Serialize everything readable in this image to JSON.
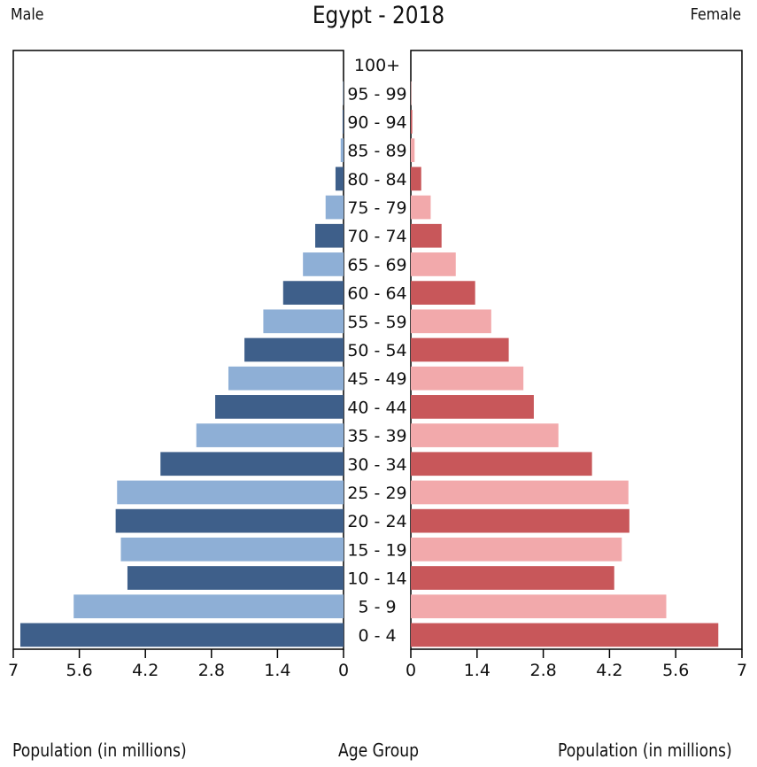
{
  "header": {
    "left_label": "Male",
    "title": "Egypt - 2018",
    "right_label": "Female"
  },
  "footer": {
    "left_axis_label": "Population (in millions)",
    "center_label": "Age Group",
    "right_axis_label": "Population (in millions)"
  },
  "chart_data": {
    "type": "bar",
    "orientation": "horizontal-pyramid",
    "title": "Egypt - 2018",
    "categories": [
      "100+",
      "95 - 99",
      "90 - 94",
      "85 - 89",
      "80 - 84",
      "75 - 79",
      "70 - 74",
      "65 - 69",
      "60 - 64",
      "55 - 59",
      "50 - 54",
      "45 - 49",
      "40 - 44",
      "35 - 39",
      "30 - 34",
      "25 - 29",
      "20 - 24",
      "15 - 19",
      "10 - 14",
      "5 - 9",
      "0 - 4"
    ],
    "series": [
      {
        "name": "Male",
        "values": [
          0.0,
          0.01,
          0.02,
          0.06,
          0.17,
          0.38,
          0.6,
          0.86,
          1.28,
          1.7,
          2.1,
          2.44,
          2.72,
          3.12,
          3.88,
          4.8,
          4.83,
          4.72,
          4.58,
          5.72,
          6.85
        ],
        "colors": [
          "#3e5f8a",
          "#8eafd6"
        ]
      },
      {
        "name": "Female",
        "values": [
          0.0,
          0.01,
          0.03,
          0.08,
          0.22,
          0.42,
          0.65,
          0.95,
          1.36,
          1.7,
          2.07,
          2.38,
          2.6,
          3.12,
          3.83,
          4.6,
          4.62,
          4.46,
          4.3,
          5.4,
          6.5
        ],
        "colors": [
          "#c8575a",
          "#f2a9ab"
        ]
      }
    ],
    "xticks": [
      "7",
      "5.6",
      "4.2",
      "2.8",
      "1.4",
      "0"
    ],
    "xticks_right": [
      "0",
      "1.4",
      "2.8",
      "4.2",
      "5.6",
      "7"
    ],
    "xlim": [
      0,
      7
    ],
    "xlabel": "Population (in millions)",
    "ylabel": "Age Group",
    "grid": false
  }
}
